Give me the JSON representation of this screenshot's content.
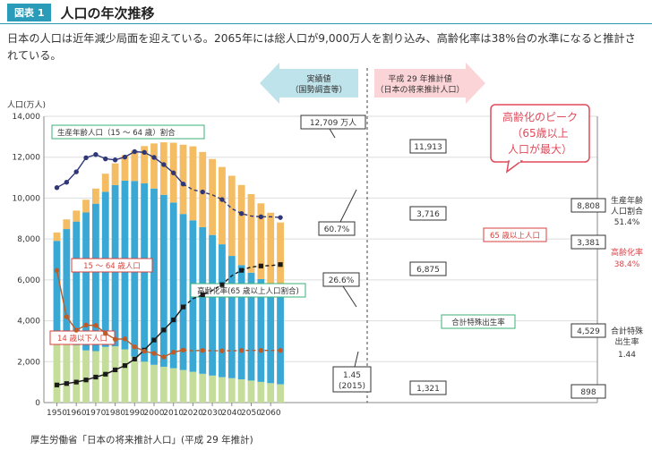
{
  "header": {
    "badge": "図表 1",
    "title": "人口の年次推移",
    "description": "日本の人口は近年減少局面を迎えている。2065年には総人口が9,000万人を割り込み、高齢化率は38%台の水準になると推計されている。",
    "source": "厚生労働省「日本の将来推計人口」(平成 29 年推計)"
  },
  "colors": {
    "accent": "#2a9bb8",
    "age15_64": "#3aa8d4",
    "age65plus": "#f5bd63",
    "age0_14": "#c5dd9a",
    "working_ratio_line": "#2f3778",
    "elderly_rate_line": "#1a1a1a",
    "fertility_line": "#c05a26",
    "peak_text": "#e04a5a",
    "label_red": "#e0434b"
  },
  "legend_boxes": {
    "actual_line1": "実績値",
    "actual_line2": "（国勢調査等）",
    "projection_line1": "平成 29 年推計値",
    "projection_line2": "（日本の将来推計人口）"
  },
  "peak_note": {
    "line1": "高齢化のピーク",
    "line2": "（65歳以上",
    "line3": "人口が最大）"
  },
  "right_labels": {
    "working_label1": "生産年齢",
    "working_label2": "人口割合",
    "working_value": "51.4%",
    "elderly_label": "高齢化率",
    "elderly_value": "38.4%",
    "fertility_label1": "合計特殊",
    "fertility_label2": "出生率",
    "fertility_value": "1.44"
  },
  "series_labels": {
    "working_ratio": "生産年齢人口（15 ～ 64 歳）割合",
    "age15_64": "15 ～ 64 歳人口",
    "age0_14": "14 歳以下人口",
    "elderly_rate": "高齢化率(65 歳以上人口割合)",
    "age65plus": "65 歳以上人口",
    "fertility": "合計特殊出生率"
  },
  "callouts": {
    "peak_total": "12,709 万人",
    "ratio_2015": "60.7%",
    "elderly_2015": "26.6%",
    "fertility_2015_line1": "1.45",
    "fertility_2015_line2": "(2015)",
    "total_2030": "11,913",
    "age65_2030": "3,716",
    "age15_64_2030": "6,875",
    "age0_14_2030": "1,321",
    "total_2065": "8,808",
    "age65_2065": "3,381",
    "age15_64_2065": "4,529",
    "age0_14_2065": "898"
  },
  "chart_data": {
    "type": "bar",
    "stacked": true,
    "ylabel": "人口(万人)",
    "ylim": [
      0,
      14000
    ],
    "yticks": [
      0,
      2000,
      4000,
      6000,
      8000,
      10000,
      12000,
      14000
    ],
    "ytick_labels": [
      "0",
      "2,000",
      "4,000",
      "6,000",
      "8,000",
      "10,000",
      "12,000",
      "14,000"
    ],
    "xticks": [
      1950,
      1960,
      1970,
      1980,
      1990,
      2000,
      2010,
      2020,
      2030,
      2040,
      2050,
      2060
    ],
    "projection_start": 2015,
    "years": [
      1950,
      1955,
      1960,
      1965,
      1970,
      1975,
      1980,
      1985,
      1990,
      1995,
      2000,
      2005,
      2010,
      2015,
      2020,
      2025,
      2030,
      2035,
      2040,
      2045,
      2050,
      2055,
      2060,
      2065
    ],
    "series": [
      {
        "name": "14 歳以下人口",
        "values": [
          2943,
          3012,
          2807,
          2553,
          2515,
          2722,
          2751,
          2603,
          2249,
          2001,
          1847,
          1752,
          1680,
          1595,
          1507,
          1407,
          1321,
          1246,
          1194,
          1138,
          1077,
          1012,
          951,
          898
        ]
      },
      {
        "name": "15 ～ 64 歳人口",
        "values": [
          4966,
          5473,
          6047,
          6744,
          7212,
          7584,
          7883,
          8251,
          8590,
          8717,
          8622,
          8409,
          8103,
          7629,
          7406,
          7170,
          6875,
          6494,
          5978,
          5584,
          5275,
          5028,
          4793,
          4529
        ]
      },
      {
        "name": "65 歳以上人口",
        "values": [
          411,
          475,
          535,
          624,
          739,
          887,
          1065,
          1247,
          1489,
          1826,
          2204,
          2567,
          2925,
          3387,
          3619,
          3677,
          3716,
          3782,
          3921,
          3919,
          3841,
          3704,
          3540,
          3381
        ]
      }
    ],
    "line_series": [
      {
        "name": "生産年齢人口（15 ～ 64 歳）割合",
        "unit": "%",
        "values": [
          59.7,
          61.2,
          64.1,
          68.0,
          68.9,
          67.7,
          67.4,
          68.2,
          69.7,
          69.5,
          68.1,
          66.1,
          63.8,
          60.7,
          59.1,
          58.5,
          57.7,
          56.4,
          53.9,
          52.5,
          51.8,
          51.6,
          51.6,
          51.4
        ]
      },
      {
        "name": "高齢化率(65 歳以上人口割合)",
        "unit": "%",
        "values": [
          4.9,
          5.3,
          5.7,
          6.3,
          7.1,
          7.9,
          9.1,
          10.3,
          12.1,
          14.6,
          17.4,
          20.2,
          23.0,
          26.6,
          28.9,
          30.0,
          31.2,
          32.8,
          35.3,
          36.8,
          37.7,
          38.0,
          38.1,
          38.4
        ]
      },
      {
        "name": "合計特殊出生率",
        "unit": "",
        "values": [
          3.65,
          2.37,
          2.0,
          2.14,
          2.13,
          1.91,
          1.75,
          1.76,
          1.54,
          1.42,
          1.36,
          1.26,
          1.39,
          1.45,
          1.43,
          1.44,
          1.43,
          1.43,
          1.43,
          1.44,
          1.44,
          1.44,
          1.44,
          1.44
        ]
      }
    ]
  }
}
